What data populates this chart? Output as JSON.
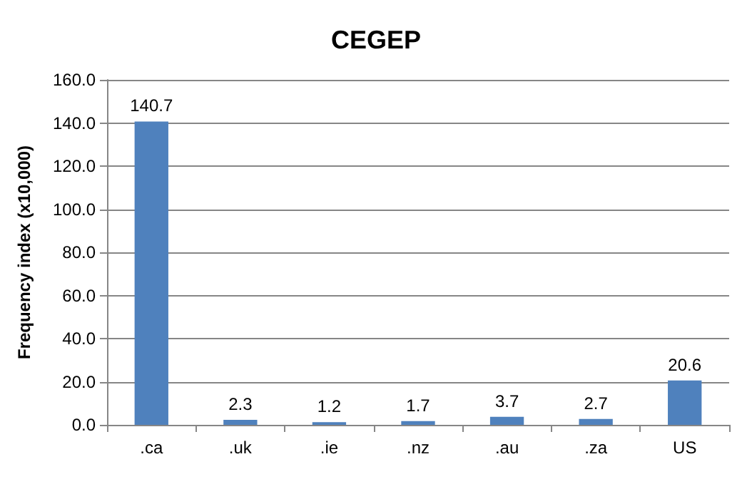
{
  "chart_data": {
    "type": "bar",
    "title": "CEGEP",
    "ylabel": "Frequency index (x10,000)",
    "categories": [
      ".ca",
      ".uk",
      ".ie",
      ".nz",
      ".au",
      ".za",
      "US"
    ],
    "values": [
      140.7,
      2.3,
      1.2,
      1.7,
      3.7,
      2.7,
      20.6
    ],
    "color": "#4f81bd",
    "ylim": [
      0,
      160
    ],
    "yticks": [
      {
        "value": 0,
        "label": "0.0"
      },
      {
        "value": 20,
        "label": "20.0"
      },
      {
        "value": 40,
        "label": "40.0"
      },
      {
        "value": 60,
        "label": "60.0"
      },
      {
        "value": 80,
        "label": "80.0"
      },
      {
        "value": 100,
        "label": "100.0"
      },
      {
        "value": 120,
        "label": "120.0"
      },
      {
        "value": 140,
        "label": "140.0"
      },
      {
        "value": 160,
        "label": "160.0"
      }
    ],
    "grid": "y",
    "data_labels": true
  }
}
